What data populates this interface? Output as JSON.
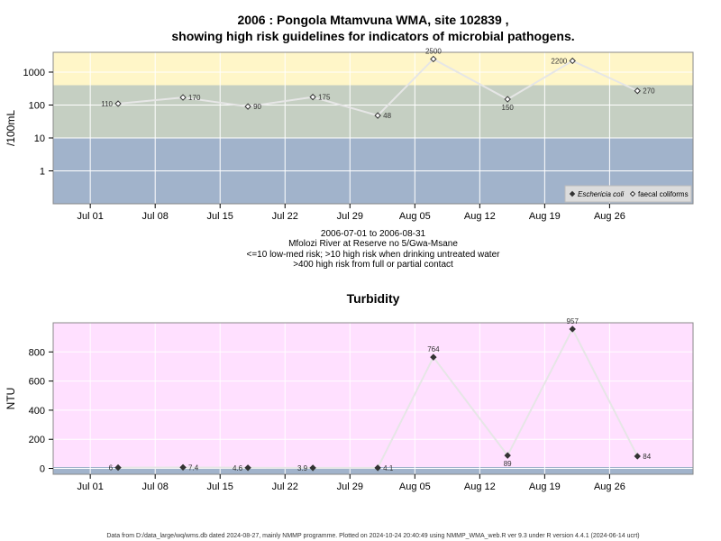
{
  "chart_data": [
    {
      "type": "line",
      "title_line1": "2006 : Pongola Mtamvuna WMA, site 102839 ,",
      "title_line2": "showing high risk guidelines for indicators of microbial pathogens.",
      "ylabel": "/100mL",
      "yscale": "log",
      "ylim": [
        0.1,
        4000
      ],
      "yticks": [
        1,
        10,
        100,
        1000
      ],
      "ytick_labels": [
        "1",
        "10",
        "100",
        "1000"
      ],
      "xrange": [
        "2006-06-27",
        "2006-09-04"
      ],
      "xticks": [
        "2006-07-01",
        "2006-07-08",
        "2006-07-15",
        "2006-07-22",
        "2006-07-29",
        "2006-08-05",
        "2006-08-12",
        "2006-08-19",
        "2006-08-26"
      ],
      "xtick_labels": [
        "Jul 01",
        "Jul 08",
        "Jul 15",
        "Jul 22",
        "Jul 29",
        "Aug 05",
        "Aug 12",
        "Aug 19",
        "Aug 26"
      ],
      "bands": [
        {
          "from": 0.1,
          "to": 10,
          "color": "#a1b3cb"
        },
        {
          "from": 10,
          "to": 400,
          "color": "#c5cfc2"
        },
        {
          "from": 400,
          "to": 4000,
          "color": "#fff6c8"
        }
      ],
      "grid": true,
      "legend_position": "bottom-right",
      "legend": [
        {
          "label": "Eschericia coli",
          "marker": "filled-diamond"
        },
        {
          "label": "faecal coliforms",
          "marker": "open-diamond"
        }
      ],
      "series": [
        {
          "name": "faecal coliforms",
          "marker": "open-diamond",
          "points": [
            {
              "x": "2006-07-04",
              "y": 110,
              "label": "110",
              "label_pos": "left"
            },
            {
              "x": "2006-07-11",
              "y": 170,
              "label": "170",
              "label_pos": "right"
            },
            {
              "x": "2006-07-18",
              "y": 90,
              "label": "90",
              "label_pos": "right"
            },
            {
              "x": "2006-07-25",
              "y": 175,
              "label": "175",
              "label_pos": "right"
            },
            {
              "x": "2006-08-01",
              "y": 48,
              "label": "48",
              "label_pos": "right"
            },
            {
              "x": "2006-08-07",
              "y": 2500,
              "label": "2500",
              "label_pos": "above"
            },
            {
              "x": "2006-08-15",
              "y": 150,
              "label": "150",
              "label_pos": "below"
            },
            {
              "x": "2006-08-22",
              "y": 2200,
              "label": "2200",
              "label_pos": "left"
            },
            {
              "x": "2006-08-29",
              "y": 270,
              "label": "270",
              "label_pos": "right"
            }
          ]
        }
      ],
      "notes": [
        "2006-07-01 to 2006-08-31",
        "Mfolozi River at Reserve no 5/Gwa-Msane",
        "<=10 low-med risk; >10 high risk when drinking untreated water",
        ">400 high risk from full or partial contact"
      ]
    },
    {
      "type": "line",
      "title": "Turbidity",
      "ylabel": "NTU",
      "ylim": [
        -40,
        1000
      ],
      "yticks": [
        0,
        200,
        400,
        600,
        800
      ],
      "ytick_labels": [
        "0",
        "200",
        "400",
        "600",
        "800"
      ],
      "xrange": [
        "2006-06-27",
        "2006-09-04"
      ],
      "xticks": [
        "2006-07-01",
        "2006-07-08",
        "2006-07-15",
        "2006-07-22",
        "2006-07-29",
        "2006-08-05",
        "2006-08-12",
        "2006-08-19",
        "2006-08-26"
      ],
      "xtick_labels": [
        "Jul 01",
        "Jul 08",
        "Jul 15",
        "Jul 22",
        "Jul 29",
        "Aug 05",
        "Aug 12",
        "Aug 19",
        "Aug 26"
      ],
      "bands": [
        {
          "from": -40,
          "to": 10,
          "color": "#a1b3cb"
        },
        {
          "from": 10,
          "to": 1000,
          "color": "#ffe0ff"
        }
      ],
      "grid": true,
      "series": [
        {
          "marker": "filled-diamond",
          "points": [
            {
              "x": "2006-07-04",
              "y": 6,
              "label": "6",
              "label_pos": "left"
            },
            {
              "x": "2006-07-11",
              "y": 7.4,
              "label": "7.4",
              "label_pos": "right"
            },
            {
              "x": "2006-07-18",
              "y": 4.6,
              "label": "4.6",
              "label_pos": "left"
            },
            {
              "x": "2006-07-25",
              "y": 3.9,
              "label": "3.9",
              "label_pos": "left"
            },
            {
              "x": "2006-08-01",
              "y": 4.1,
              "label": "4.1",
              "label_pos": "right"
            },
            {
              "x": "2006-08-07",
              "y": 764,
              "label": "764",
              "label_pos": "above"
            },
            {
              "x": "2006-08-15",
              "y": 89,
              "label": "89",
              "label_pos": "below"
            },
            {
              "x": "2006-08-22",
              "y": 957,
              "label": "957",
              "label_pos": "above"
            },
            {
              "x": "2006-08-29",
              "y": 84,
              "label": "84",
              "label_pos": "right"
            }
          ]
        }
      ]
    }
  ],
  "footer": "Data from D:/data_large/wq/wms.db dated 2024-08-27, mainly NMMP programme. Plotted on 2024-10-24 20:40:49 using NMMP_WMA_web.R ver 9.3 under R version 4.4.1 (2024-06-14 ucrt)"
}
